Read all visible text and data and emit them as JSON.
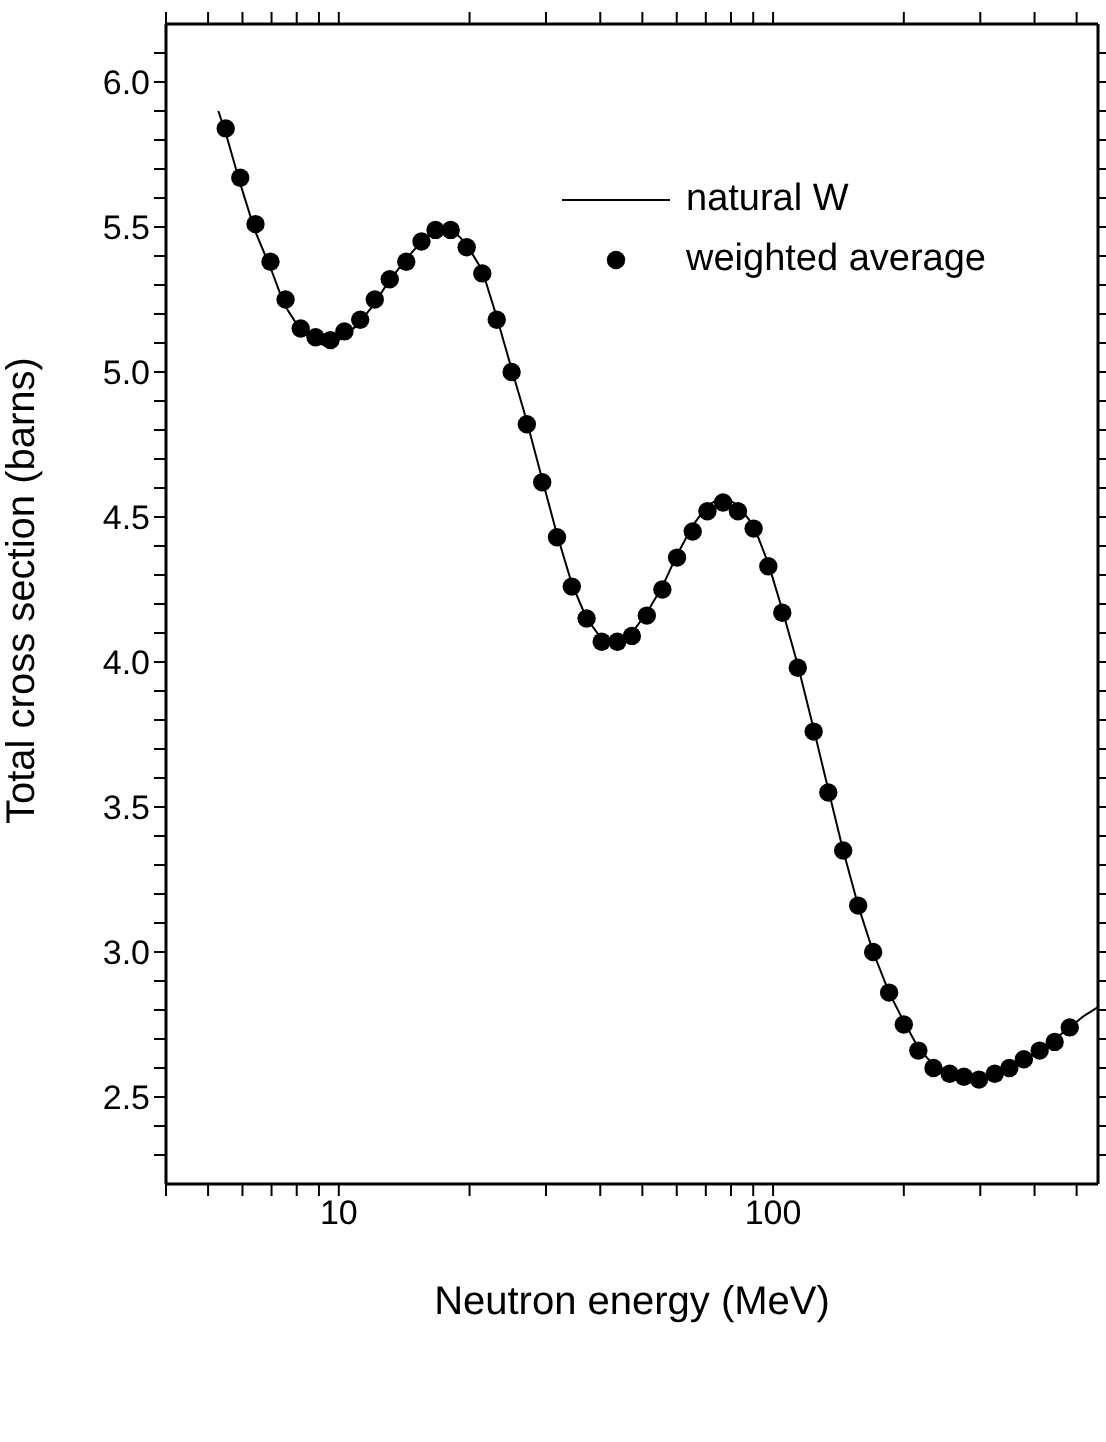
{
  "chart_data": {
    "type": "line",
    "xlabel": "Neutron energy (MeV)",
    "ylabel": "Total cross section (barns)",
    "log": "x",
    "legend": "top right",
    "xlim": [
      4,
      560
    ],
    "ylim": [
      2.2,
      6.2
    ],
    "xticks": [
      {
        "value": 4,
        "label": null
      },
      {
        "value": 5,
        "label": null
      },
      {
        "value": 6,
        "label": null
      },
      {
        "value": 7,
        "label": null
      },
      {
        "value": 8,
        "label": null
      },
      {
        "value": 9,
        "label": null
      },
      10,
      {
        "value": 20,
        "label": null
      },
      {
        "value": 30,
        "label": null
      },
      {
        "value": 40,
        "label": null
      },
      {
        "value": 50,
        "label": null
      },
      {
        "value": 60,
        "label": null
      },
      {
        "value": 70,
        "label": null
      },
      {
        "value": 80,
        "label": null
      },
      {
        "value": 90,
        "label": null
      },
      100,
      {
        "value": 200,
        "label": null
      },
      {
        "value": 300,
        "label": null
      },
      {
        "value": 400,
        "label": null
      },
      {
        "value": 500,
        "label": null
      }
    ],
    "yticks": [
      {
        "value": 2.3,
        "label": null
      },
      {
        "value": 2.4,
        "label": null
      },
      {
        "value": 2.5,
        "label": "2.5"
      },
      {
        "value": 2.6,
        "label": null
      },
      {
        "value": 2.7,
        "label": null
      },
      {
        "value": 2.8,
        "label": null
      },
      {
        "value": 2.9,
        "label": null
      },
      {
        "value": 3.0,
        "label": "3.0"
      },
      {
        "value": 3.1,
        "label": null
      },
      {
        "value": 3.2,
        "label": null
      },
      {
        "value": 3.3,
        "label": null
      },
      {
        "value": 3.4,
        "label": null
      },
      {
        "value": 3.5,
        "label": "3.5"
      },
      {
        "value": 3.6,
        "label": null
      },
      {
        "value": 3.7,
        "label": null
      },
      {
        "value": 3.8,
        "label": null
      },
      {
        "value": 3.9,
        "label": null
      },
      {
        "value": 4.0,
        "label": "4.0"
      },
      {
        "value": 4.1,
        "label": null
      },
      {
        "value": 4.2,
        "label": null
      },
      {
        "value": 4.3,
        "label": null
      },
      {
        "value": 4.4,
        "label": null
      },
      {
        "value": 4.5,
        "label": "4.5"
      },
      {
        "value": 4.6,
        "label": null
      },
      {
        "value": 4.7,
        "label": null
      },
      {
        "value": 4.8,
        "label": null
      },
      {
        "value": 4.9,
        "label": null
      },
      {
        "value": 5.0,
        "label": "5.0"
      },
      {
        "value": 5.1,
        "label": null
      },
      {
        "value": 5.2,
        "label": null
      },
      {
        "value": 5.3,
        "label": null
      },
      {
        "value": 5.4,
        "label": null
      },
      {
        "value": 5.5,
        "label": "5.5"
      },
      {
        "value": 5.6,
        "label": null
      },
      {
        "value": 5.7,
        "label": null
      },
      {
        "value": 5.8,
        "label": null
      },
      {
        "value": 5.9,
        "label": null
      },
      {
        "value": 6.0,
        "label": "6.0"
      },
      {
        "value": 6.1,
        "label": null
      }
    ],
    "series": [
      {
        "name": "natural W",
        "color": "#000000",
        "marker": "none",
        "x": [
          5.28,
          5.5,
          5.9,
          6.4,
          7.0,
          7.5,
          8.2,
          8.9,
          9.4,
          10.0,
          11.0,
          12.0,
          13.0,
          14.3,
          15.5,
          16.7,
          17.5,
          18.3,
          19.7,
          21.4,
          23.1,
          25.0,
          27.1,
          29.4,
          31.8,
          34.4,
          37.2,
          40.3,
          43.0,
          47.3,
          51.2,
          55.6,
          60.1,
          65.3,
          70.6,
          77.0,
          83.0,
          90.2,
          97.5,
          105,
          114,
          124,
          134,
          145,
          157,
          170,
          185,
          200,
          216,
          234,
          255,
          275,
          295,
          324,
          350,
          378,
          411,
          445,
          482,
          520,
          560
        ],
        "values": [
          5.9,
          5.82,
          5.66,
          5.49,
          5.35,
          5.23,
          5.14,
          5.1,
          5.09,
          5.11,
          5.16,
          5.23,
          5.31,
          5.39,
          5.45,
          5.49,
          5.5,
          5.49,
          5.44,
          5.35,
          5.19,
          5.01,
          4.83,
          4.63,
          4.44,
          4.27,
          4.15,
          4.08,
          4.07,
          4.1,
          4.17,
          4.26,
          4.37,
          4.47,
          4.54,
          4.57,
          4.54,
          4.47,
          4.34,
          4.18,
          3.99,
          3.77,
          3.56,
          3.35,
          3.16,
          3.0,
          2.86,
          2.76,
          2.67,
          2.61,
          2.59,
          2.575,
          2.57,
          2.58,
          2.6,
          2.63,
          2.66,
          2.7,
          2.74,
          2.78,
          2.81
        ]
      },
      {
        "name": "weighted average",
        "type": "scatter",
        "color": "#000000",
        "marker": "circle",
        "x": [
          5.49,
          5.93,
          6.43,
          6.96,
          7.54,
          8.17,
          8.84,
          9.57,
          10.3,
          11.2,
          12.1,
          13.1,
          14.3,
          15.5,
          16.7,
          18.1,
          19.7,
          21.4,
          23.1,
          25.0,
          27.1,
          29.4,
          31.8,
          34.4,
          37.2,
          40.3,
          43.8,
          47.3,
          51.2,
          55.6,
          60.1,
          65.3,
          70.6,
          76.7,
          83.0,
          90.2,
          97.5,
          105,
          114,
          124,
          134,
          145,
          157,
          170,
          185,
          200,
          216,
          234,
          255,
          275,
          298,
          324,
          350,
          378,
          411,
          445,
          482
        ],
        "values": [
          5.84,
          5.67,
          5.51,
          5.38,
          5.25,
          5.15,
          5.12,
          5.11,
          5.14,
          5.18,
          5.25,
          5.32,
          5.38,
          5.45,
          5.49,
          5.49,
          5.43,
          5.34,
          5.18,
          5.0,
          4.82,
          4.62,
          4.43,
          4.26,
          4.15,
          4.07,
          4.07,
          4.09,
          4.16,
          4.25,
          4.36,
          4.45,
          4.52,
          4.55,
          4.52,
          4.46,
          4.33,
          4.17,
          3.98,
          3.76,
          3.55,
          3.35,
          3.16,
          3.0,
          2.86,
          2.75,
          2.66,
          2.6,
          2.58,
          2.57,
          2.56,
          2.58,
          2.6,
          2.63,
          2.66,
          2.69,
          2.74
        ]
      }
    ]
  }
}
